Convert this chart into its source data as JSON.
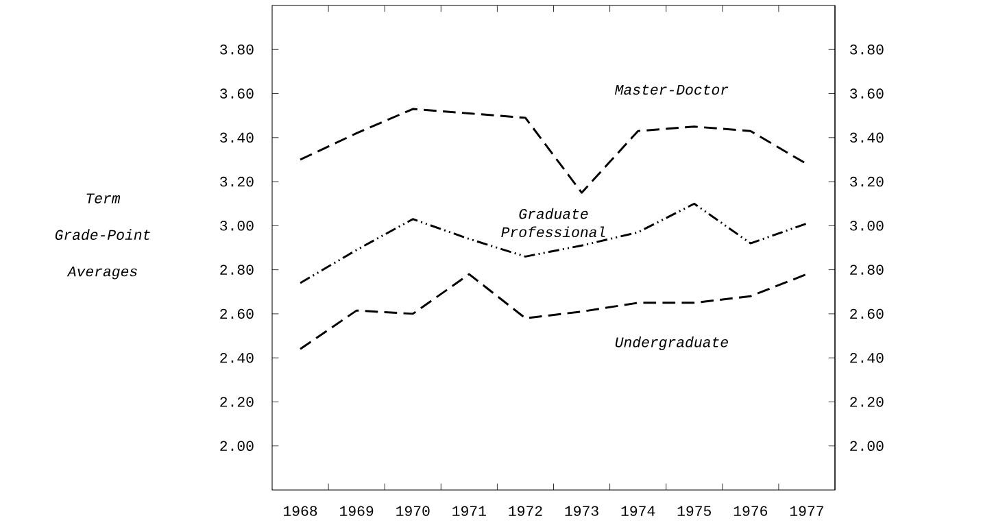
{
  "chart_data": {
    "type": "line",
    "ylabel": "Term Grade-Point Averages",
    "x": [
      1968,
      1969,
      1970,
      1971,
      1972,
      1973,
      1974,
      1975,
      1976,
      1977
    ],
    "xlim": [
      1967.5,
      1977.5
    ],
    "xticks": [
      1968,
      1969,
      1970,
      1971,
      1972,
      1973,
      1974,
      1975,
      1976,
      1977,
      {
        "value": 1968.5,
        "label": null
      },
      {
        "value": 1969.5,
        "label": null
      },
      {
        "value": 1970.5,
        "label": null
      },
      {
        "value": 1971.5,
        "label": null
      },
      {
        "value": 1972.5,
        "label": null
      },
      {
        "value": 1973.5,
        "label": null
      },
      {
        "value": 1974.5,
        "label": null
      },
      {
        "value": 1975.5,
        "label": null
      },
      {
        "value": 1976.5,
        "label": null
      }
    ],
    "ylim": [
      1.8,
      4.0
    ],
    "yticks": [
      {
        "value": 2.0,
        "label": "2.00"
      },
      {
        "value": 2.2,
        "label": "2.20"
      },
      {
        "value": 2.4,
        "label": "2.40"
      },
      {
        "value": 2.6,
        "label": "2.60"
      },
      {
        "value": 2.8,
        "label": "2.80"
      },
      {
        "value": 3.0,
        "label": "3.00"
      },
      {
        "value": 3.2,
        "label": "3.20"
      },
      {
        "value": 3.4,
        "label": "3.40"
      },
      {
        "value": 3.6,
        "label": "3.60"
      },
      {
        "value": 3.8,
        "label": "3.80"
      }
    ],
    "y2lim": [
      1.8,
      4.0
    ],
    "y2ticks": [
      {
        "value": 2.0,
        "label": "2.00"
      },
      {
        "value": 2.2,
        "label": "2.20"
      },
      {
        "value": 2.4,
        "label": "2.40"
      },
      {
        "value": 2.6,
        "label": "2.60"
      },
      {
        "value": 2.8,
        "label": "2.80"
      },
      {
        "value": 3.0,
        "label": "3.00"
      },
      {
        "value": 3.2,
        "label": "3.20"
      },
      {
        "value": 3.4,
        "label": "3.40"
      },
      {
        "value": 3.6,
        "label": "3.60"
      },
      {
        "value": 3.8,
        "label": "3.80"
      }
    ],
    "series": [
      {
        "name": "Master-Doctor",
        "color": "#000000",
        "line_style": "dashed",
        "values": [
          3.3,
          3.42,
          3.53,
          3.51,
          3.49,
          3.15,
          3.43,
          3.45,
          3.43,
          3.28
        ]
      },
      {
        "name": "Graduate Professional",
        "color": "#000000",
        "line_style": "dashdotdotted",
        "values": [
          2.74,
          2.89,
          3.03,
          2.94,
          2.86,
          2.91,
          2.97,
          3.1,
          2.92,
          3.01
        ]
      },
      {
        "name": "Undergraduate",
        "color": "#000000",
        "line_style": "dashed",
        "values": [
          2.44,
          2.615,
          2.6,
          2.78,
          2.58,
          2.61,
          2.65,
          2.65,
          2.68,
          2.78
        ]
      }
    ]
  }
}
